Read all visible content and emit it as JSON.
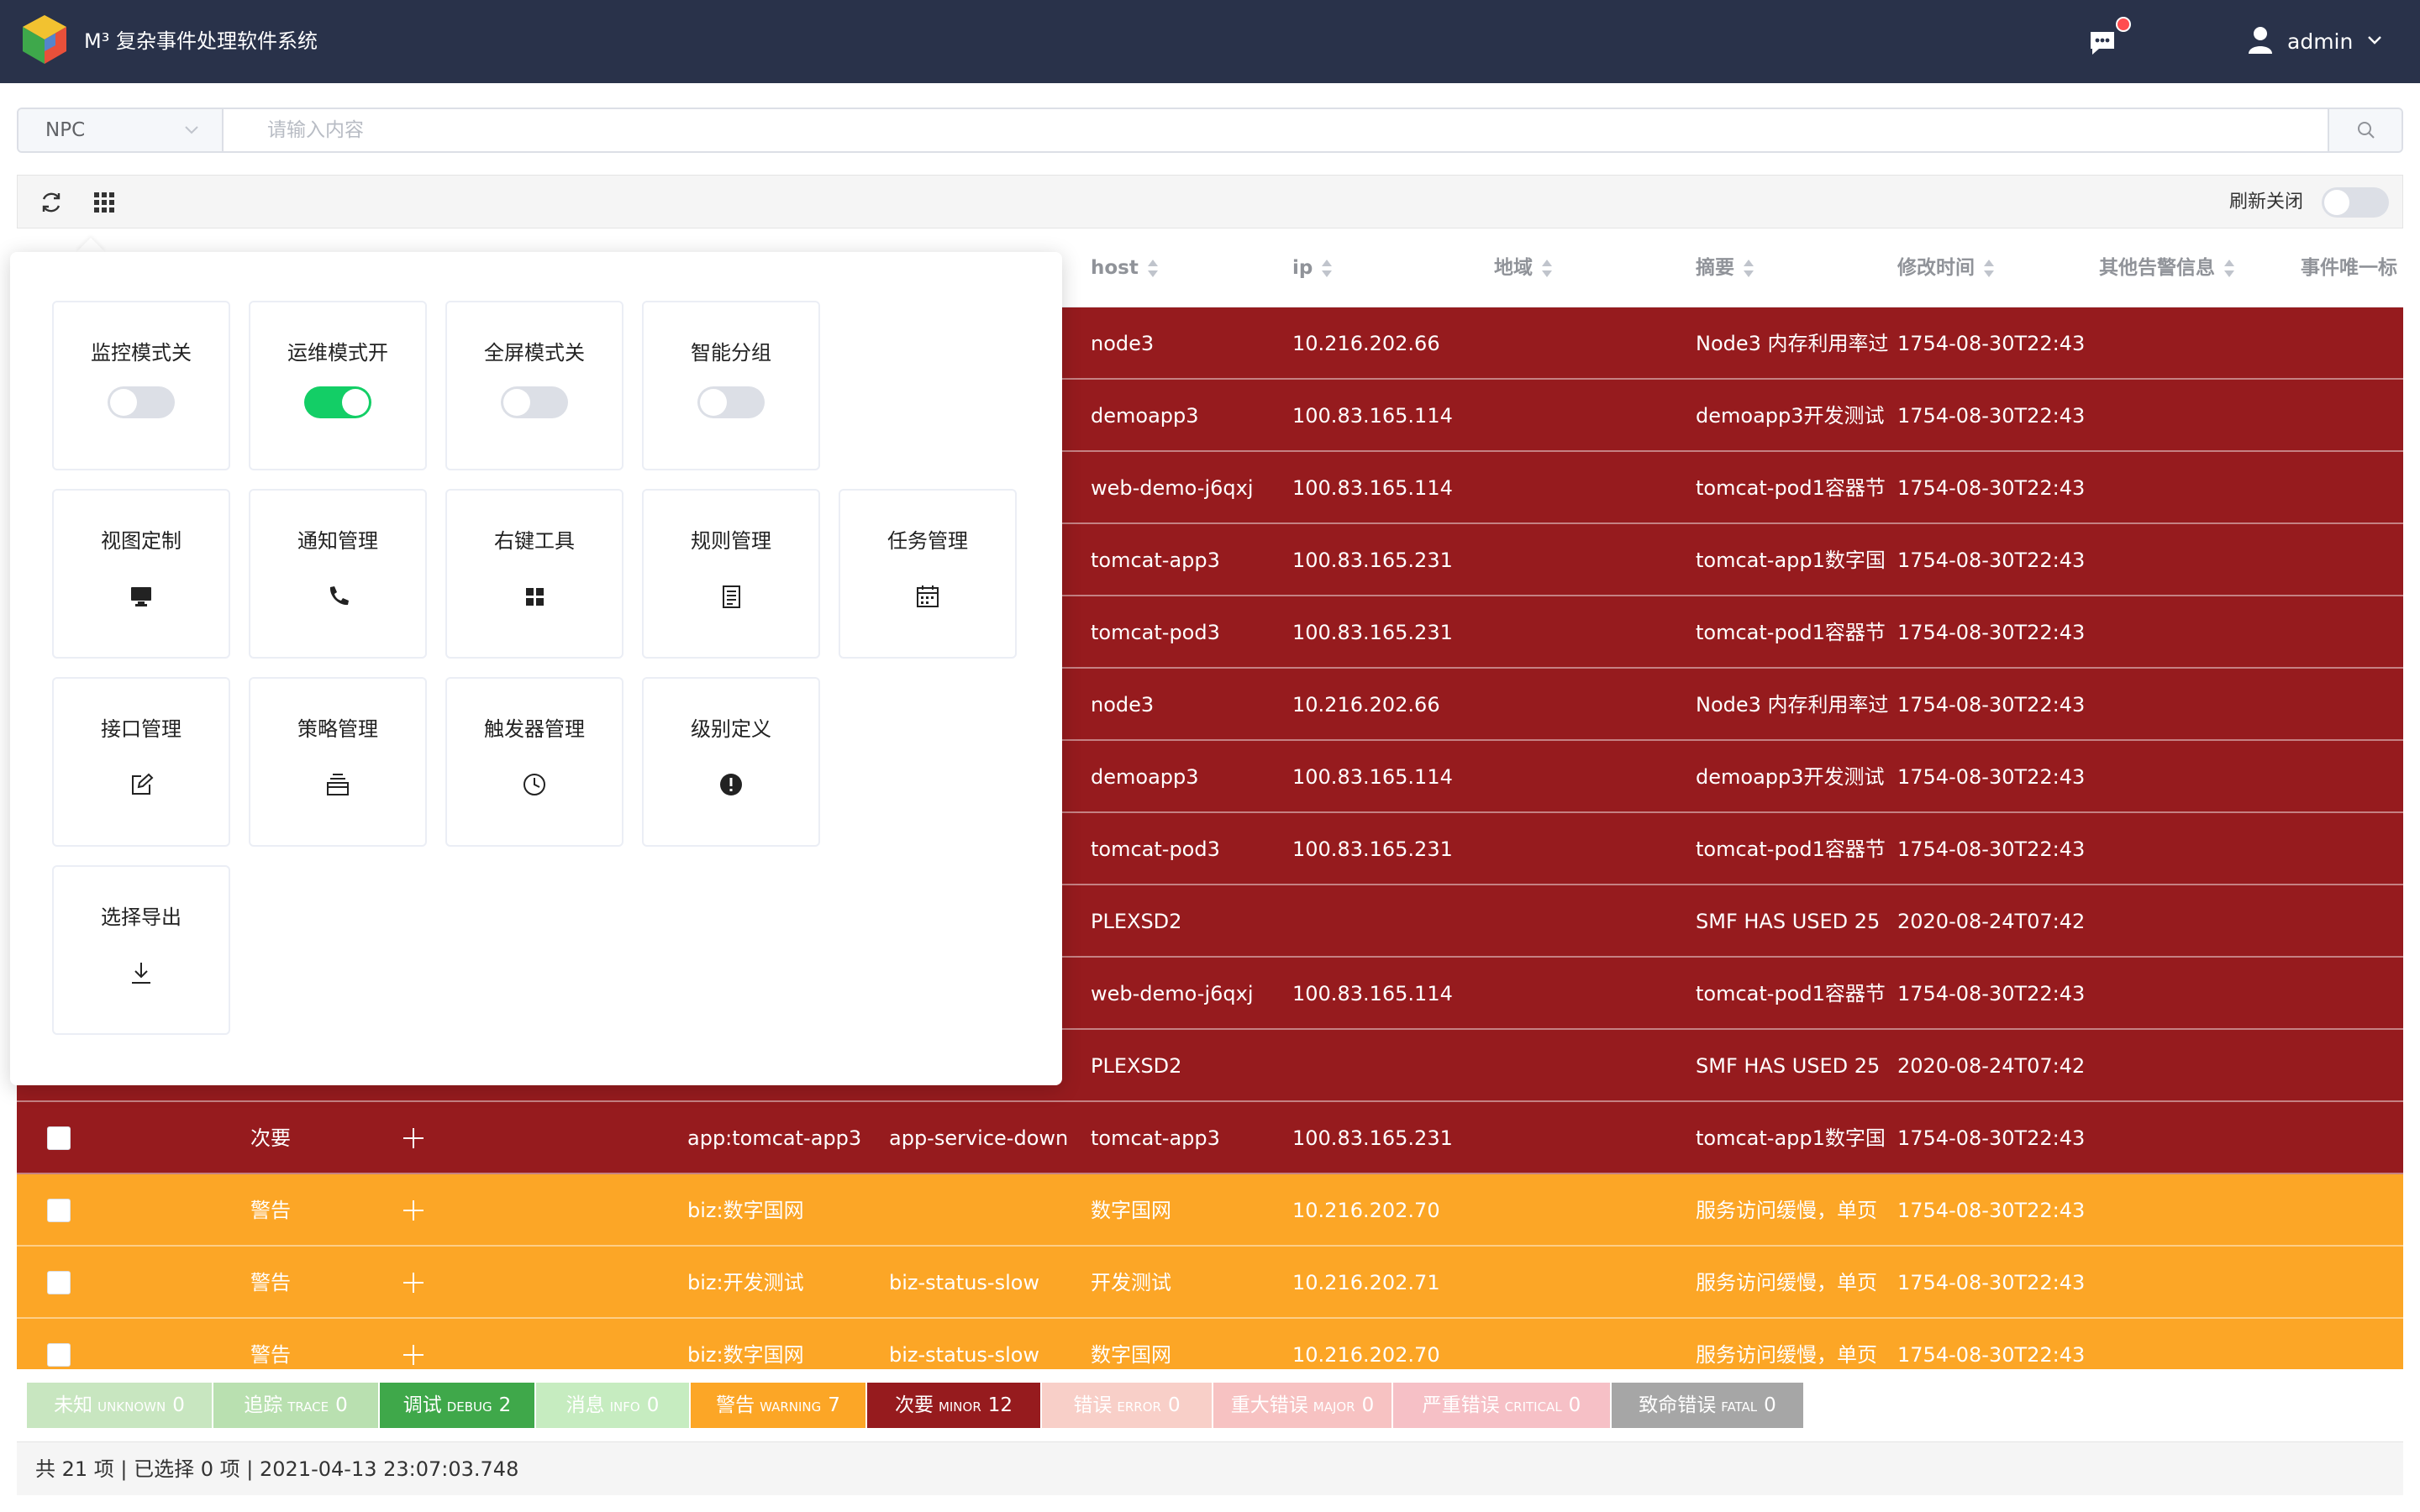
{
  "header": {
    "title": "M³ 复杂事件处理软件系统",
    "user": "admin",
    "colors": {
      "bg": "#29324a"
    }
  },
  "search": {
    "select_value": "NPC",
    "placeholder": "请输入内容"
  },
  "toolbar": {
    "refresh_label": "刷新关闭",
    "refresh_on": false
  },
  "columns": [
    "host",
    "ip",
    "地域",
    "摘要",
    "修改时间",
    "其他告警信息",
    "事件唯一标"
  ],
  "rows": [
    {
      "severity": "minor",
      "level": "",
      "app": "",
      "name": "",
      "host": "node3",
      "ip": "10.216.202.66",
      "summary": "Node3 内存利用率过",
      "time": "1754-08-30T22:43"
    },
    {
      "severity": "minor",
      "level": "",
      "app": "",
      "name": "",
      "host": "demoapp3",
      "ip": "100.83.165.114",
      "summary": "demoapp3开发测试",
      "time": "1754-08-30T22:43"
    },
    {
      "severity": "minor",
      "level": "",
      "app": "",
      "name": "",
      "host": "web-demo-j6qxj",
      "ip": "100.83.165.114",
      "summary": "tomcat-pod1容器节",
      "time": "1754-08-30T22:43"
    },
    {
      "severity": "minor",
      "level": "",
      "app": "",
      "name": "",
      "host": "tomcat-app3",
      "ip": "100.83.165.231",
      "summary": "tomcat-app1数字国",
      "time": "1754-08-30T22:43"
    },
    {
      "severity": "minor",
      "level": "",
      "app": "",
      "name": "",
      "host": "tomcat-pod3",
      "ip": "100.83.165.231",
      "summary": "tomcat-pod1容器节",
      "time": "1754-08-30T22:43"
    },
    {
      "severity": "minor",
      "level": "",
      "app": "",
      "name": "",
      "host": "node3",
      "ip": "10.216.202.66",
      "summary": "Node3 内存利用率过",
      "time": "1754-08-30T22:43"
    },
    {
      "severity": "minor",
      "level": "",
      "app": "",
      "name": "",
      "host": "demoapp3",
      "ip": "100.83.165.114",
      "summary": "demoapp3开发测试",
      "time": "1754-08-30T22:43"
    },
    {
      "severity": "minor",
      "level": "",
      "app": "",
      "name": "",
      "host": "tomcat-pod3",
      "ip": "100.83.165.231",
      "summary": "tomcat-pod1容器节",
      "time": "1754-08-30T22:43"
    },
    {
      "severity": "minor",
      "level": "",
      "app": "",
      "name": "",
      "host": "PLEXSD2",
      "ip": "",
      "summary": "SMF HAS USED 25",
      "time": "2020-08-24T07:42"
    },
    {
      "severity": "minor",
      "level": "",
      "app": "",
      "name": "",
      "host": "web-demo-j6qxj",
      "ip": "100.83.165.114",
      "summary": "tomcat-pod1容器节",
      "time": "1754-08-30T22:43"
    },
    {
      "severity": "minor",
      "level": "",
      "app": "",
      "name": "",
      "host": "PLEXSD2",
      "ip": "",
      "summary": "SMF HAS USED 25",
      "time": "2020-08-24T07:42"
    },
    {
      "severity": "minor",
      "level": "次要",
      "app": "app:tomcat-app3",
      "name": "app-service-down",
      "host": "tomcat-app3",
      "ip": "100.83.165.231",
      "summary": "tomcat-app1数字国",
      "time": "1754-08-30T22:43"
    },
    {
      "severity": "warning",
      "level": "警告",
      "app": "biz:数字国网",
      "name": "",
      "host": "数字国网",
      "ip": "10.216.202.70",
      "summary": "服务访问缓慢，单页",
      "time": "1754-08-30T22:43"
    },
    {
      "severity": "warning",
      "level": "警告",
      "app": "biz:开发测试",
      "name": "biz-status-slow",
      "host": "开发测试",
      "ip": "10.216.202.71",
      "summary": "服务访问缓慢，单页",
      "time": "1754-08-30T22:43"
    },
    {
      "severity": "warning",
      "level": "警告",
      "app": "biz:数字国网",
      "name": "biz-status-slow",
      "host": "数字国网",
      "ip": "10.216.202.70",
      "summary": "服务访问缓慢，单页",
      "time": "1754-08-30T22:43"
    }
  ],
  "severity_legend": [
    {
      "label": "未知",
      "sub": "UNKNOWN",
      "count": "0",
      "color": "#c8e6c0",
      "text": "#ffffff"
    },
    {
      "label": "追踪",
      "sub": "TRACE",
      "count": "0",
      "color": "#b9e0b0",
      "text": "#ffffff"
    },
    {
      "label": "调试",
      "sub": "DEBUG",
      "count": "2",
      "color": "#3fa84a",
      "text": "#ffffff"
    },
    {
      "label": "消息",
      "sub": "INFO",
      "count": "0",
      "color": "#c6ecc0",
      "text": "#ffffff"
    },
    {
      "label": "警告",
      "sub": "WARNING",
      "count": "7",
      "color": "#fca626",
      "text": "#ffffff"
    },
    {
      "label": "次要",
      "sub": "MINOR",
      "count": "12",
      "color": "#961b1e",
      "text": "#ffffff"
    },
    {
      "label": "错误",
      "sub": "ERROR",
      "count": "0",
      "color": "#f8cfc8",
      "text": "#ffffff"
    },
    {
      "label": "重大错误",
      "sub": "MAJOR",
      "count": "0",
      "color": "#f7c2c2",
      "text": "#ffffff"
    },
    {
      "label": "严重错误",
      "sub": "CRITICAL",
      "count": "0",
      "color": "#f6c0c6",
      "text": "#ffffff"
    },
    {
      "label": "致命错误",
      "sub": "FATAL",
      "count": "0",
      "color": "#a6a6a6",
      "text": "#ffffff"
    }
  ],
  "footer": {
    "status": "共 21 项 | 已选择 0 项 | 2021-04-13 23:07:03.748"
  },
  "panel": {
    "cards": [
      {
        "title": "监控模式关",
        "kind": "switch",
        "on": false
      },
      {
        "title": "运维模式开",
        "kind": "switch",
        "on": true
      },
      {
        "title": "全屏模式关",
        "kind": "switch",
        "on": false
      },
      {
        "title": "智能分组",
        "kind": "switch",
        "on": false
      },
      {
        "title": "视图定制",
        "kind": "icon",
        "icon": "monitor-icon"
      },
      {
        "title": "通知管理",
        "kind": "icon",
        "icon": "phone-icon"
      },
      {
        "title": "右键工具",
        "kind": "icon",
        "icon": "grid-icon"
      },
      {
        "title": "规则管理",
        "kind": "icon",
        "icon": "document-icon"
      },
      {
        "title": "任务管理",
        "kind": "icon",
        "icon": "calendar-icon"
      },
      {
        "title": "接口管理",
        "kind": "icon",
        "icon": "edit-icon"
      },
      {
        "title": "策略管理",
        "kind": "icon",
        "icon": "tray-icon"
      },
      {
        "title": "触发器管理",
        "kind": "icon",
        "icon": "clock-icon"
      },
      {
        "title": "级别定义",
        "kind": "icon",
        "icon": "alert-icon"
      },
      {
        "title": "选择导出",
        "kind": "icon",
        "icon": "download-icon"
      }
    ]
  }
}
